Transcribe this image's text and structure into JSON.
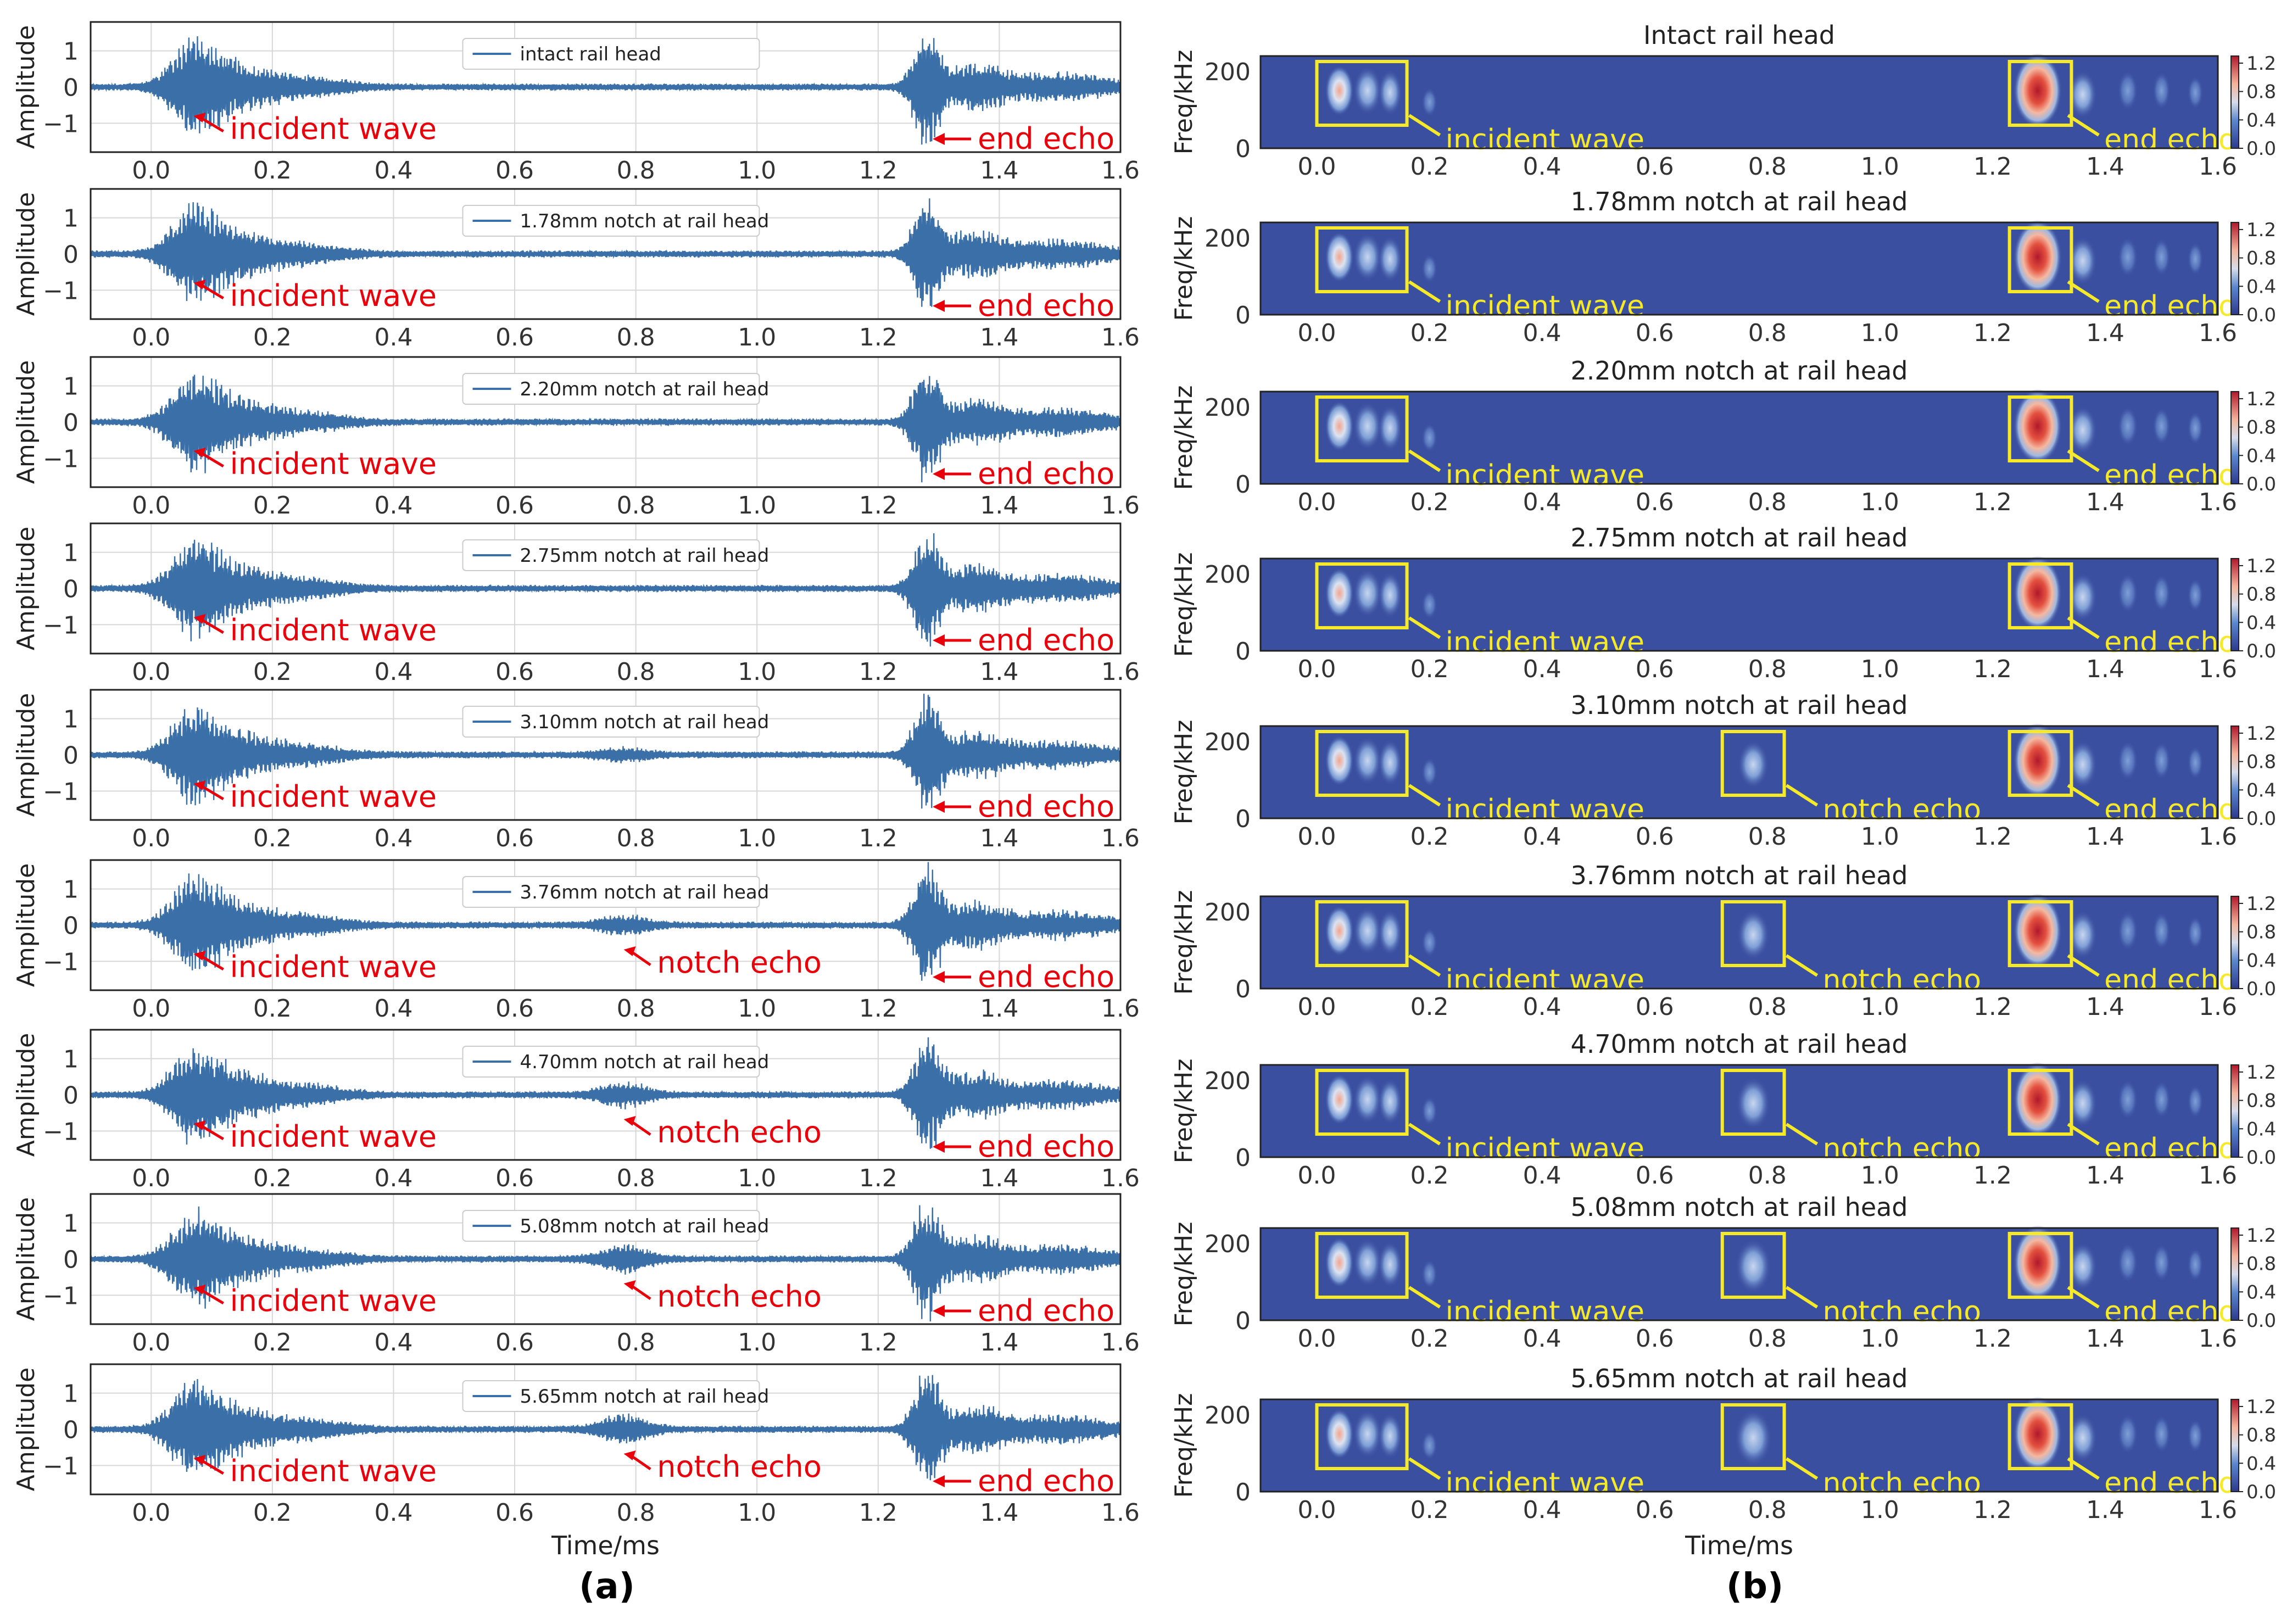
{
  "figure": {
    "panel_labels": [
      "(a)",
      "(b)"
    ],
    "x_label": "Time/ms",
    "left_y_label": "Amplitude",
    "right_y_label": "Freq/kHz",
    "arrow_labels": {
      "incident": "incident wave",
      "notch": "notch echo",
      "end": "end echo"
    },
    "colors": {
      "waveform": "#3b6fa8",
      "arrow_text": "#e8000b",
      "box": "#f5e92a",
      "spectrogram_bg": "#3a4fa0",
      "grid": "#d7d7d7"
    }
  },
  "chart_data": [
    {
      "type": "line",
      "panel": "(a)",
      "xlabel": "Time/ms",
      "ylabel": "Amplitude",
      "xlim": [
        -0.1,
        1.6
      ],
      "ylim": [
        -1.8,
        1.8
      ],
      "x_ticks": [
        "0.0",
        "0.2",
        "0.4",
        "0.6",
        "0.8",
        "1.0",
        "1.2",
        "1.4",
        "1.6"
      ],
      "y_ticks": [
        "1",
        "0",
        "−1"
      ],
      "grid": true,
      "legend_position": "top-center",
      "signal_features": {
        "incident_wave_time_ms": 0.07,
        "end_echo_time_ms": 1.28,
        "notch_echo_time_ms": 0.78
      },
      "series": [
        {
          "name": "intact rail head",
          "notch_depth_mm": 0,
          "notch_echo": false
        },
        {
          "name": "1.78mm notch at rail head",
          "notch_depth_mm": 1.78,
          "notch_echo": false
        },
        {
          "name": "2.20mm notch at rail head",
          "notch_depth_mm": 2.2,
          "notch_echo": false
        },
        {
          "name": "2.75mm notch at rail head",
          "notch_depth_mm": 2.75,
          "notch_echo": false
        },
        {
          "name": "3.10mm notch at rail head",
          "notch_depth_mm": 3.1,
          "notch_echo": false
        },
        {
          "name": "3.76mm notch at rail head",
          "notch_depth_mm": 3.76,
          "notch_echo": true
        },
        {
          "name": "4.70mm notch at rail head",
          "notch_depth_mm": 4.7,
          "notch_echo": true
        },
        {
          "name": "5.08mm notch at rail head",
          "notch_depth_mm": 5.08,
          "notch_echo": true
        },
        {
          "name": "5.65mm notch at rail head",
          "notch_depth_mm": 5.65,
          "notch_echo": true
        }
      ]
    },
    {
      "type": "heatmap",
      "panel": "(b)",
      "xlabel": "Time/ms",
      "ylabel": "Freq/kHz",
      "xlim": [
        -0.1,
        1.6
      ],
      "ylim": [
        0,
        240
      ],
      "x_ticks": [
        "0.0",
        "0.2",
        "0.4",
        "0.6",
        "0.8",
        "1.0",
        "1.2",
        "1.4",
        "1.6"
      ],
      "y_ticks": [
        "200",
        "0"
      ],
      "colorbar_ticks": [
        "1.2",
        "0.8",
        "0.4",
        "0.0"
      ],
      "colorbar_range": [
        0,
        1.3
      ],
      "subplots": [
        {
          "title": "Intact rail head",
          "boxed_notch_echo": false
        },
        {
          "title": "1.78mm notch at rail head",
          "boxed_notch_echo": false
        },
        {
          "title": "2.20mm notch at rail head",
          "boxed_notch_echo": false
        },
        {
          "title": "2.75mm notch at rail head",
          "boxed_notch_echo": false
        },
        {
          "title": "3.10mm notch at rail head",
          "boxed_notch_echo": true
        },
        {
          "title": "3.76mm notch at rail head",
          "boxed_notch_echo": true
        },
        {
          "title": "4.70mm notch at rail head",
          "boxed_notch_echo": true
        },
        {
          "title": "5.08mm notch at rail head",
          "boxed_notch_echo": true
        },
        {
          "title": "5.65mm notch at rail head",
          "boxed_notch_echo": true
        }
      ]
    }
  ]
}
